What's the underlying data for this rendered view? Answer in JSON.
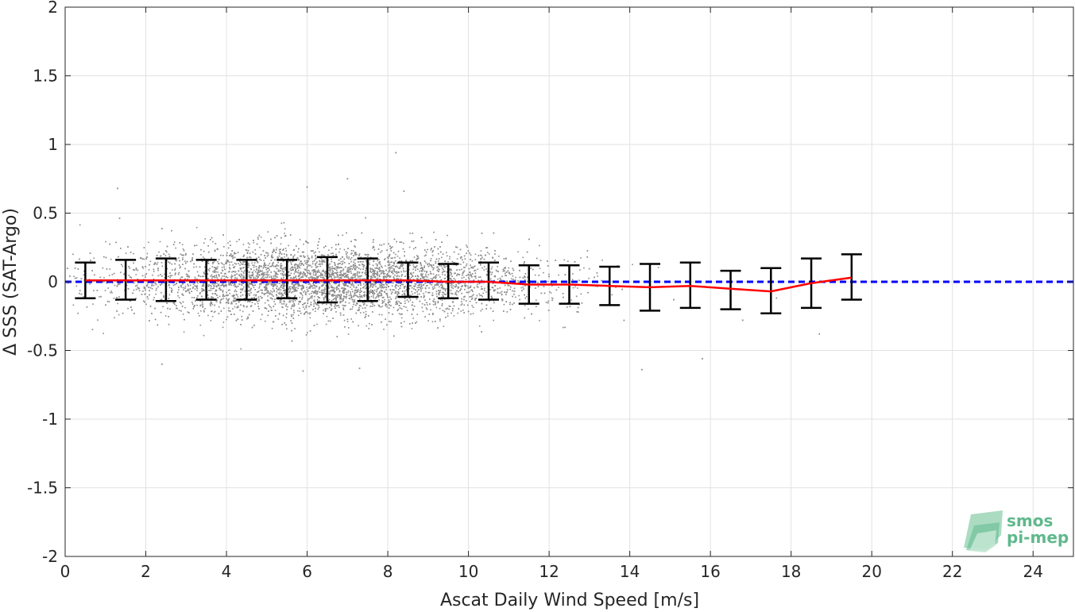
{
  "chart_data": {
    "type": "scatter",
    "title": "",
    "xlabel": "Ascat Daily Wind Speed [m/s]",
    "ylabel": "Δ SSS (SAT-Argo)",
    "xlim": [
      0,
      25
    ],
    "ylim": [
      -2,
      2
    ],
    "x_ticks": [
      0,
      2,
      4,
      6,
      8,
      10,
      12,
      14,
      16,
      18,
      20,
      22,
      24
    ],
    "y_ticks": [
      2,
      1.5,
      1,
      0.5,
      0,
      -0.5,
      -1,
      -1.5,
      -2
    ],
    "y_tick_labels": [
      "2",
      "1.5",
      "1",
      "0.5",
      "0",
      "-0.5",
      "-1",
      "-1.5",
      "-2"
    ],
    "grid": true,
    "scatter_color": "#8c8c8c",
    "bin_color": "#000000",
    "mean_line_color": "#ff0000",
    "zero_line_color": "#0000ff",
    "zero_line": 0,
    "bins": {
      "x": [
        0.5,
        1.5,
        2.5,
        3.5,
        4.5,
        5.5,
        6.5,
        7.5,
        8.5,
        9.5,
        10.5,
        11.5,
        12.5,
        13.5,
        14.5,
        15.5,
        16.5,
        17.5,
        18.5,
        19.5
      ],
      "mean": [
        0.01,
        0.01,
        0.01,
        0.01,
        0.01,
        0.01,
        0.01,
        0.01,
        0.01,
        0.0,
        0.0,
        -0.02,
        -0.02,
        -0.03,
        -0.04,
        -0.03,
        -0.05,
        -0.07,
        -0.01,
        0.03
      ],
      "upper": [
        0.14,
        0.16,
        0.17,
        0.16,
        0.16,
        0.16,
        0.18,
        0.17,
        0.14,
        0.13,
        0.14,
        0.12,
        0.12,
        0.11,
        0.13,
        0.14,
        0.08,
        0.1,
        0.17,
        0.2
      ],
      "lower": [
        -0.12,
        -0.13,
        -0.14,
        -0.13,
        -0.13,
        -0.12,
        -0.15,
        -0.14,
        -0.11,
        -0.12,
        -0.13,
        -0.16,
        -0.16,
        -0.17,
        -0.21,
        -0.19,
        -0.2,
        -0.23,
        -0.19,
        -0.13
      ]
    },
    "scatter_distribution": {
      "x_peak": 6.5,
      "x_spread": 2.6,
      "x_min": 0,
      "x_max": 20.5,
      "y_mean": 0.0,
      "y_std": 0.13,
      "outliers": [
        [
          8.2,
          0.94
        ],
        [
          7.0,
          0.75
        ],
        [
          1.3,
          0.68
        ],
        [
          6.0,
          0.69
        ],
        [
          8.4,
          0.66
        ],
        [
          5.9,
          -0.65
        ],
        [
          7.3,
          -0.63
        ],
        [
          2.4,
          -0.6
        ],
        [
          14.3,
          -0.64
        ],
        [
          15.8,
          -0.56
        ],
        [
          18.7,
          -0.38
        ],
        [
          16.8,
          -0.28
        ]
      ]
    }
  },
  "logo": {
    "line1": "smos",
    "line2": "pi-mep"
  }
}
